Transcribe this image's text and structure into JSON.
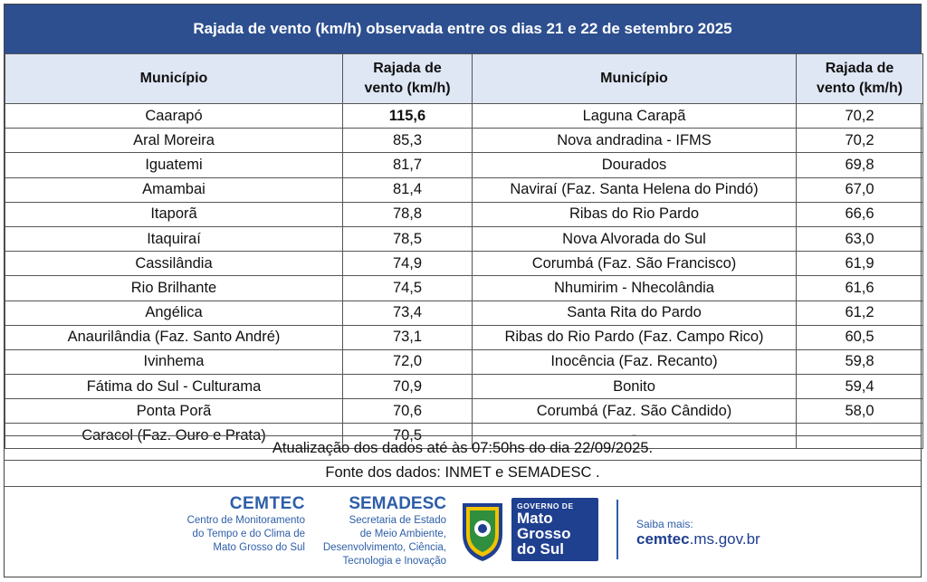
{
  "title": "Rajada de vento (km/h) observada entre os dias 21 e 22 de setembro 2025",
  "headers": {
    "municipio": "Município",
    "rajada_line1": "Rajada de",
    "rajada_line2": "vento (km/h)"
  },
  "rows": [
    {
      "m1": "Caarapó",
      "v1": "115,6",
      "m2": "Laguna Carapã",
      "v2": "70,2"
    },
    {
      "m1": "Aral Moreira",
      "v1": "85,3",
      "m2": "Nova andradina - IFMS",
      "v2": "70,2"
    },
    {
      "m1": "Iguatemi",
      "v1": "81,7",
      "m2": "Dourados",
      "v2": "69,8"
    },
    {
      "m1": "Amambai",
      "v1": "81,4",
      "m2": "Naviraí (Faz. Santa Helena do Pindó)",
      "v2": "67,0"
    },
    {
      "m1": "Itaporã",
      "v1": "78,8",
      "m2": "Ribas do Rio Pardo",
      "v2": "66,6"
    },
    {
      "m1": "Itaquiraí",
      "v1": "78,5",
      "m2": "Nova Alvorada do Sul",
      "v2": "63,0"
    },
    {
      "m1": "Cassilândia",
      "v1": "74,9",
      "m2": "Corumbá (Faz. São Francisco)",
      "v2": "61,9"
    },
    {
      "m1": "Rio Brilhante",
      "v1": "74,5",
      "m2": "Nhumirim - Nhecolândia",
      "v2": "61,6"
    },
    {
      "m1": "Angélica",
      "v1": "73,4",
      "m2": "Santa Rita do Pardo",
      "v2": "61,2"
    },
    {
      "m1": "Anaurilândia (Faz. Santo André)",
      "v1": "73,1",
      "m2": "Ribas do Rio Pardo (Faz. Campo  Rico)",
      "v2": "60,5"
    },
    {
      "m1": "Ivinhema",
      "v1": "72,0",
      "m2": "Inocência (Faz. Recanto)",
      "v2": "59,8"
    },
    {
      "m1": "Fátima do Sul - Culturama",
      "v1": "70,9",
      "m2": "Bonito",
      "v2": "59,4"
    },
    {
      "m1": "Ponta Porã",
      "v1": "70,6",
      "m2": "Corumbá (Faz. São Cândido)",
      "v2": "58,0"
    },
    {
      "m1": "Caracol (Faz. Ouro e Prata)",
      "v1": "70,5",
      "m2": "-",
      "v2": ""
    }
  ],
  "notes": {
    "update": "Atualização dos dados até às 07:50hs do dia 22/09/2025.",
    "source": "Fonte dos dados: INMET e SEMADESC ."
  },
  "footer": {
    "cemtec_logo": "CEMTEC",
    "cemtec_line1": "Centro de Monitoramento",
    "cemtec_line2": "do Tempo e do Clima de",
    "cemtec_line3": "Mato Grosso do Sul",
    "semadesc_logo": "SEMADESC",
    "semadesc_line1": "Secretaria de Estado",
    "semadesc_line2": "de Meio Ambiente,",
    "semadesc_line3": "Desenvolvimento, Ciência,",
    "semadesc_line4": "Tecnologia e Inovação",
    "gov_small": "GOVERNO DE",
    "gov_line1": "Mato",
    "gov_line2": "Grosso",
    "gov_line3": "do Sul",
    "saiba_label": "Saiba mais:",
    "url_bold": "cemtec",
    "url_rest": ".ms.gov.br"
  },
  "colors": {
    "title_bg": "#2d4f8f",
    "header_bg": "#dfe6f4",
    "highlight": "#1d2fc8",
    "brand_blue": "#2d5ea8"
  },
  "icons": [
    "crest-icon"
  ]
}
